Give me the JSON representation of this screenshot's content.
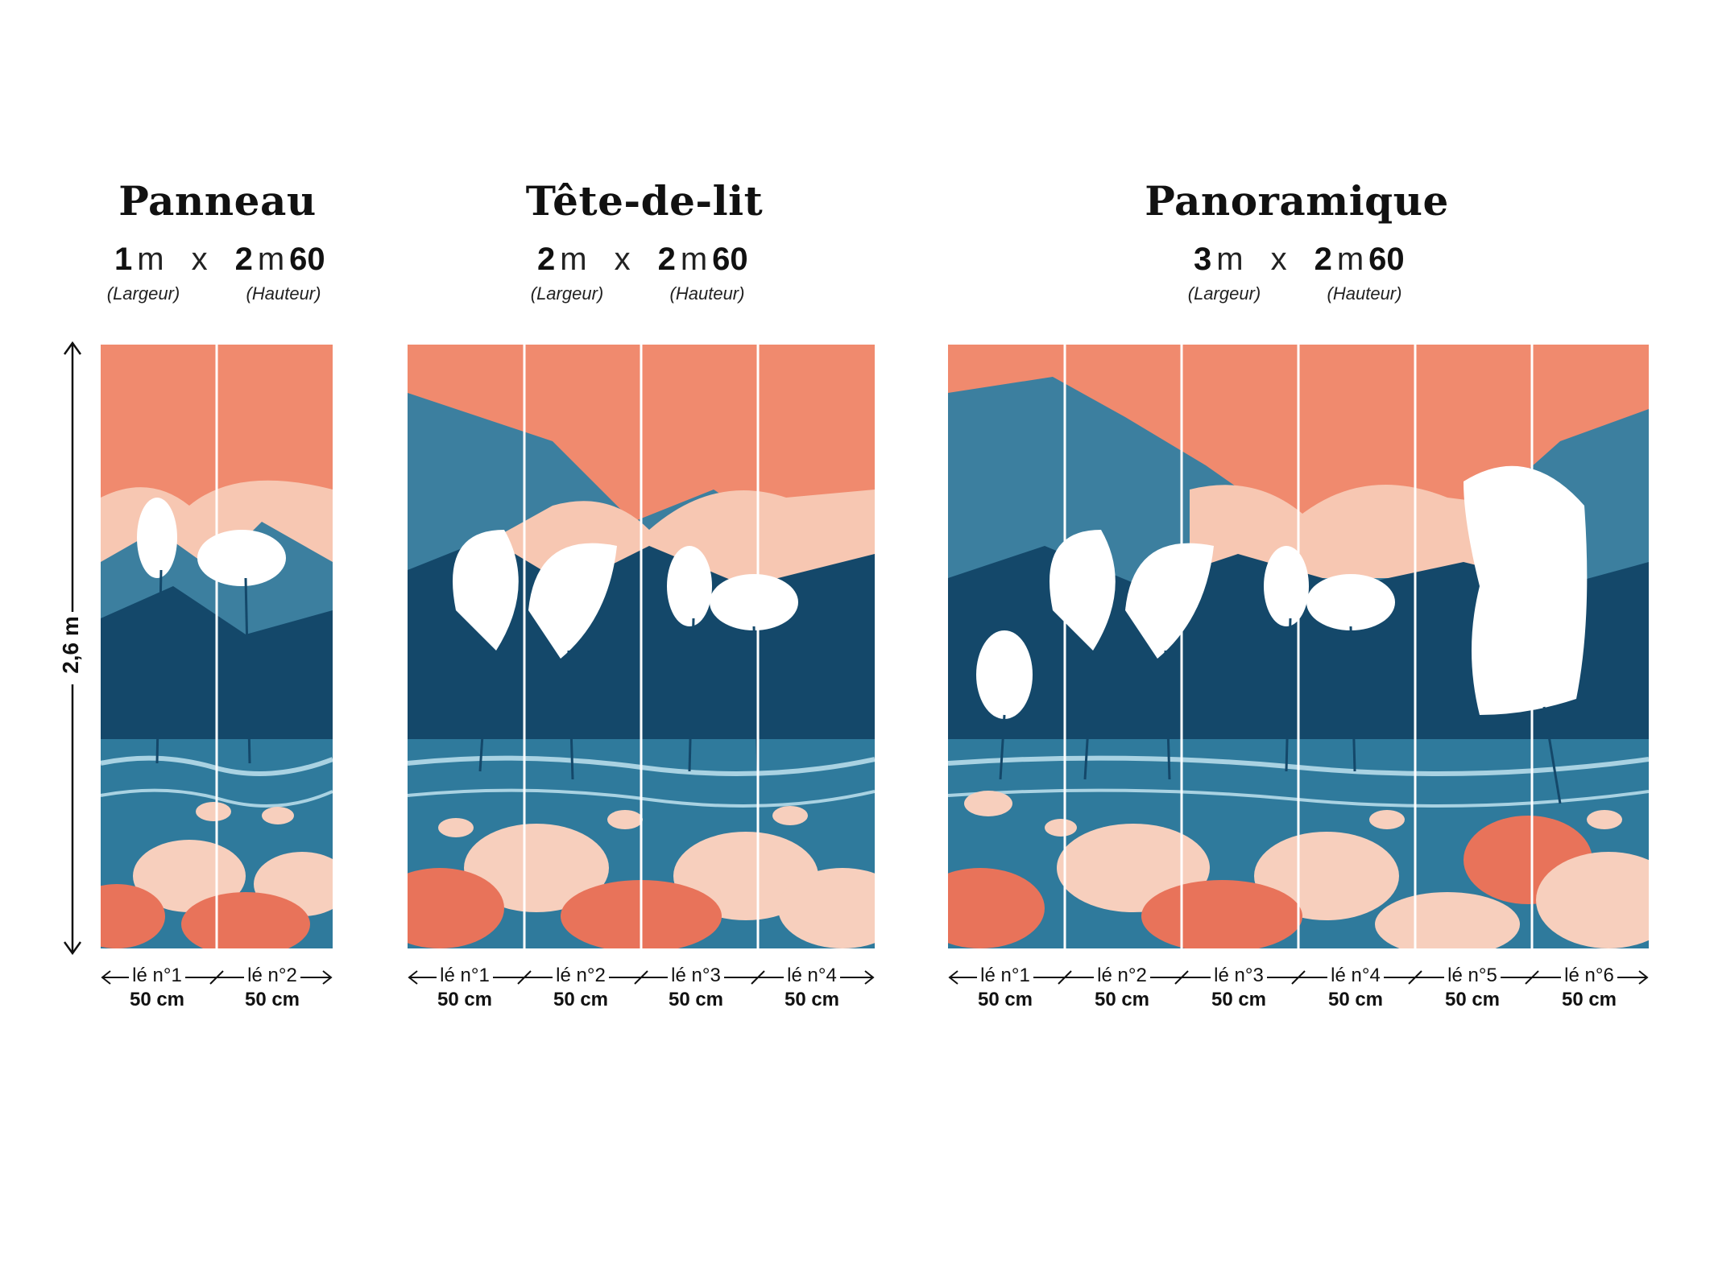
{
  "height_label": "2,6 m",
  "colors": {
    "sky": "#f08a6e",
    "mountain_light": "#f7c7b2",
    "mountain_teal": "#3c7f9f",
    "mountain_dark": "#14486a",
    "water": "#2f7a9c",
    "lotus_pale": "#f7cfbd",
    "lotus_coral": "#e8735a",
    "crane_white": "#ffffff"
  },
  "formats": [
    {
      "title": "Panneau",
      "width_num": "1",
      "height_num": "2",
      "height_dec": "60",
      "unit": "m",
      "times": "x",
      "width_caption": "(Largeur)",
      "height_caption": "(Hauteur)",
      "strips": [
        {
          "label": "lé n°1",
          "size": "50 cm"
        },
        {
          "label": "lé n°2",
          "size": "50 cm"
        }
      ]
    },
    {
      "title": "Tête-de-lit",
      "width_num": "2",
      "height_num": "2",
      "height_dec": "60",
      "unit": "m",
      "times": "x",
      "width_caption": "(Largeur)",
      "height_caption": "(Hauteur)",
      "strips": [
        {
          "label": "lé n°1",
          "size": "50 cm"
        },
        {
          "label": "lé n°2",
          "size": "50 cm"
        },
        {
          "label": "lé n°3",
          "size": "50 cm"
        },
        {
          "label": "lé n°4",
          "size": "50 cm"
        }
      ]
    },
    {
      "title": "Panoramique",
      "width_num": "3",
      "height_num": "2",
      "height_dec": "60",
      "unit": "m",
      "times": "x",
      "width_caption": "(Largeur)",
      "height_caption": "(Hauteur)",
      "strips": [
        {
          "label": "lé n°1",
          "size": "50 cm"
        },
        {
          "label": "lé n°2",
          "size": "50 cm"
        },
        {
          "label": "lé n°3",
          "size": "50 cm"
        },
        {
          "label": "lé n°4",
          "size": "50 cm"
        },
        {
          "label": "lé n°5",
          "size": "50 cm"
        },
        {
          "label": "lé n°6",
          "size": "50 cm"
        }
      ]
    }
  ]
}
